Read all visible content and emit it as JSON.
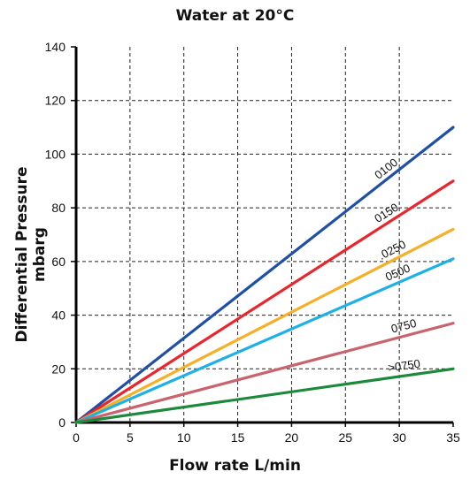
{
  "chart_data": {
    "type": "line",
    "title": "Water at 20°C",
    "xlabel": "Flow rate L/min",
    "ylabel": "Differential Pressure mbarg",
    "xlim": [
      0,
      35
    ],
    "ylim": [
      0,
      140
    ],
    "xticks": [
      "0",
      "5",
      "10",
      "15",
      "20",
      "25",
      "30",
      "35"
    ],
    "yticks": [
      "0",
      "20",
      "40",
      "60",
      "80",
      "100",
      "120",
      "140"
    ],
    "grid": true,
    "series": [
      {
        "name": "0100",
        "color": "#1f4fa6",
        "x": [
          0,
          35
        ],
        "y": [
          0,
          110
        ]
      },
      {
        "name": "0150",
        "color": "#e8262d",
        "x": [
          0,
          35
        ],
        "y": [
          0,
          90
        ]
      },
      {
        "name": ".0250",
        "color": "#f6b027",
        "x": [
          0,
          35
        ],
        "y": [
          0,
          72
        ]
      },
      {
        "name": "0500",
        "color": "#1fb0e8",
        "x": [
          0,
          35
        ],
        "y": [
          0,
          61
        ]
      },
      {
        "name": "0750",
        "color": "#c9646f",
        "x": [
          0,
          35
        ],
        "y": [
          0,
          37
        ]
      },
      {
        "name": ">0750",
        "color": "#1c8a3a",
        "x": [
          0,
          35
        ],
        "y": [
          0,
          20
        ]
      }
    ]
  }
}
